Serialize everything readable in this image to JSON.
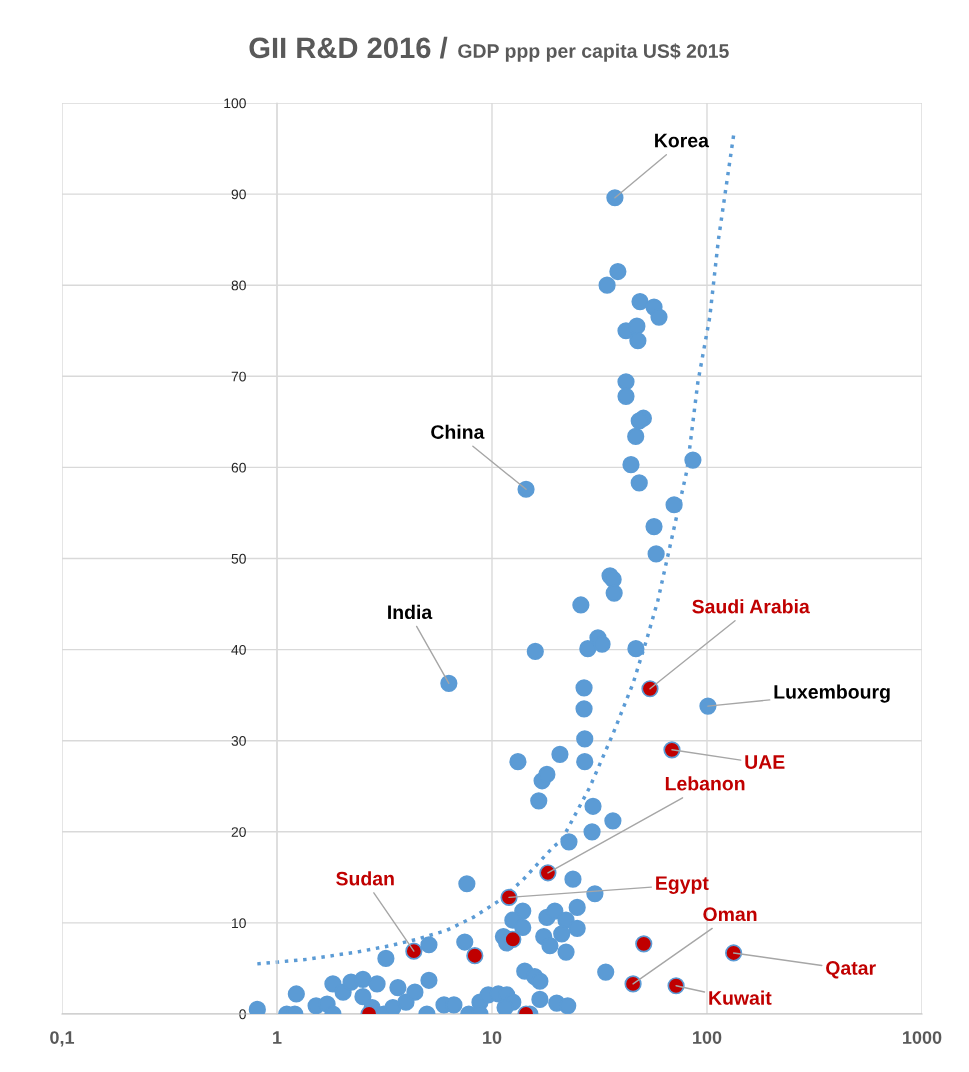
{
  "chart_data": {
    "type": "scatter",
    "title": "GII R&D 2016 /",
    "subtitle": "GDP ppp per capita US$ 2015",
    "log": "x",
    "xlim": [
      0.1,
      1000
    ],
    "ylim": [
      0,
      100
    ],
    "xticks": [
      {
        "value": 0.1,
        "label": "0,1"
      },
      1,
      10,
      100,
      1000
    ],
    "yticks": [
      0,
      10,
      20,
      30,
      40,
      50,
      60,
      70,
      80,
      90,
      100
    ],
    "grid": true,
    "marker": "circle",
    "series": [
      {
        "color": "#5b9bd5",
        "x": [
          37.3,
          38.5,
          34.3,
          48.8,
          56.7,
          59.8,
          42,
          47.2,
          47.7,
          42,
          42,
          50.6,
          48.4,
          46.6,
          44.3,
          48.4,
          86,
          14.4,
          70.3,
          56.7,
          58,
          35.4,
          36.6,
          37,
          25.9,
          6.3,
          15.9,
          27.9,
          31.1,
          32.5,
          46.7,
          101,
          26.8,
          26.8,
          27,
          27,
          20.7,
          13.2,
          17.1,
          18,
          16.5,
          29.5,
          36.5,
          29.2,
          22.8,
          0.81,
          1.11,
          1.21,
          1.23,
          1.52,
          1.71,
          1.82,
          1.82,
          2.03,
          2.21,
          2.51,
          2.51,
          2.92,
          2.77,
          3.21,
          3.14,
          3.46,
          3.65,
          3.98,
          4.38,
          5.09,
          5.09,
          4.98,
          5.98,
          6.65,
          7.64,
          7.47,
          7.8,
          8.79,
          8.79,
          9.6,
          10.7,
          11.7,
          12.5,
          11.5,
          11.3,
          11.7,
          13.9,
          12.5,
          13.9,
          14.2,
          15.8,
          16.7,
          15,
          23.8,
          24.9,
          18,
          19.6,
          22.1,
          24.9,
          17.4,
          18.6,
          21.1,
          22.1,
          16.7,
          20,
          22.5,
          30.1,
          33.8
        ],
        "values": [
          89.6,
          81.5,
          80.0,
          78.2,
          77.6,
          76.5,
          75.0,
          75.5,
          73.9,
          69.4,
          67.8,
          65.4,
          65.1,
          63.4,
          60.3,
          58.3,
          60.8,
          57.6,
          55.9,
          53.5,
          50.5,
          48.1,
          47.7,
          46.2,
          44.9,
          36.3,
          39.8,
          40.1,
          41.3,
          40.6,
          40.1,
          33.8,
          35.8,
          33.5,
          30.2,
          27.7,
          28.5,
          27.7,
          25.6,
          26.3,
          23.4,
          22.8,
          21.2,
          20,
          18.9,
          0.5,
          0,
          0,
          2.2,
          0.9,
          1.1,
          0,
          3.3,
          2.4,
          3.5,
          3.8,
          1.9,
          3.3,
          0.7,
          6.1,
          0,
          0.7,
          2.9,
          1.3,
          2.4,
          7.6,
          3.7,
          0,
          1,
          1,
          14.3,
          7.9,
          0,
          1.3,
          0,
          2.1,
          2.2,
          2.1,
          1.3,
          0.7,
          8.5,
          7.8,
          11.3,
          10.3,
          9.5,
          4.7,
          4.1,
          3.6,
          0,
          14.8,
          11.7,
          10.6,
          11.3,
          10.3,
          9.4,
          8.5,
          7.5,
          8.8,
          6.8,
          1.6,
          1.2,
          0.9,
          13.2,
          4.6
        ]
      },
      {
        "color": "#c00000",
        "x": [
          54.3,
          68.7,
          18.2,
          12.0,
          4.33,
          8.32,
          12.5,
          50.8,
          45.3,
          71.8,
          133,
          2.68,
          14.4
        ],
        "values": [
          35.7,
          29.0,
          15.5,
          12.8,
          6.9,
          6.4,
          8.2,
          7.7,
          3.3,
          3.1,
          6.7,
          0,
          0
        ]
      },
      {
        "type": "line",
        "color": "#5b9bd5",
        "line_style": "dotted",
        "marker": "none",
        "x": [
          0.81,
          1.38,
          2.35,
          3.36,
          4.48,
          6.17,
          8.17,
          10.9,
          13.9,
          19.2,
          21.1,
          28.5,
          36.6,
          45.3,
          52.4,
          59.1,
          80.7,
          90.6,
          103,
          113,
          134
        ],
        "values": [
          5.5,
          6.0,
          6.8,
          7.5,
          8.2,
          9.2,
          10.6,
          12.5,
          14.7,
          18.3,
          19.1,
          24.9,
          30.8,
          36.3,
          41.1,
          45.4,
          59.7,
          69.3,
          76.5,
          85,
          97
        ]
      }
    ],
    "annotations": [
      {
        "text": "Korea",
        "x": 37.3,
        "y": 89.6
      },
      {
        "text": "China",
        "x": 14.4,
        "y": 57.6
      },
      {
        "text": "India",
        "x": 6.3,
        "y": 36.3
      },
      {
        "text": "Saudi Arabia",
        "x": 54.3,
        "y": 35.7
      },
      {
        "text": "Luxembourg",
        "x": 101,
        "y": 33.8
      },
      {
        "text": "UAE",
        "x": 68.7,
        "y": 29.0
      },
      {
        "text": "Lebanon",
        "x": 18.2,
        "y": 15.5
      },
      {
        "text": "Egypt",
        "x": 12.0,
        "y": 12.8
      },
      {
        "text": "Sudan",
        "x": 4.33,
        "y": 6.9
      },
      {
        "text": "Oman",
        "x": 45.3,
        "y": 3.3
      },
      {
        "text": "Kuwait",
        "x": 71.8,
        "y": 3.1
      },
      {
        "text": "Qatar",
        "x": 133,
        "y": 6.7
      }
    ]
  }
}
